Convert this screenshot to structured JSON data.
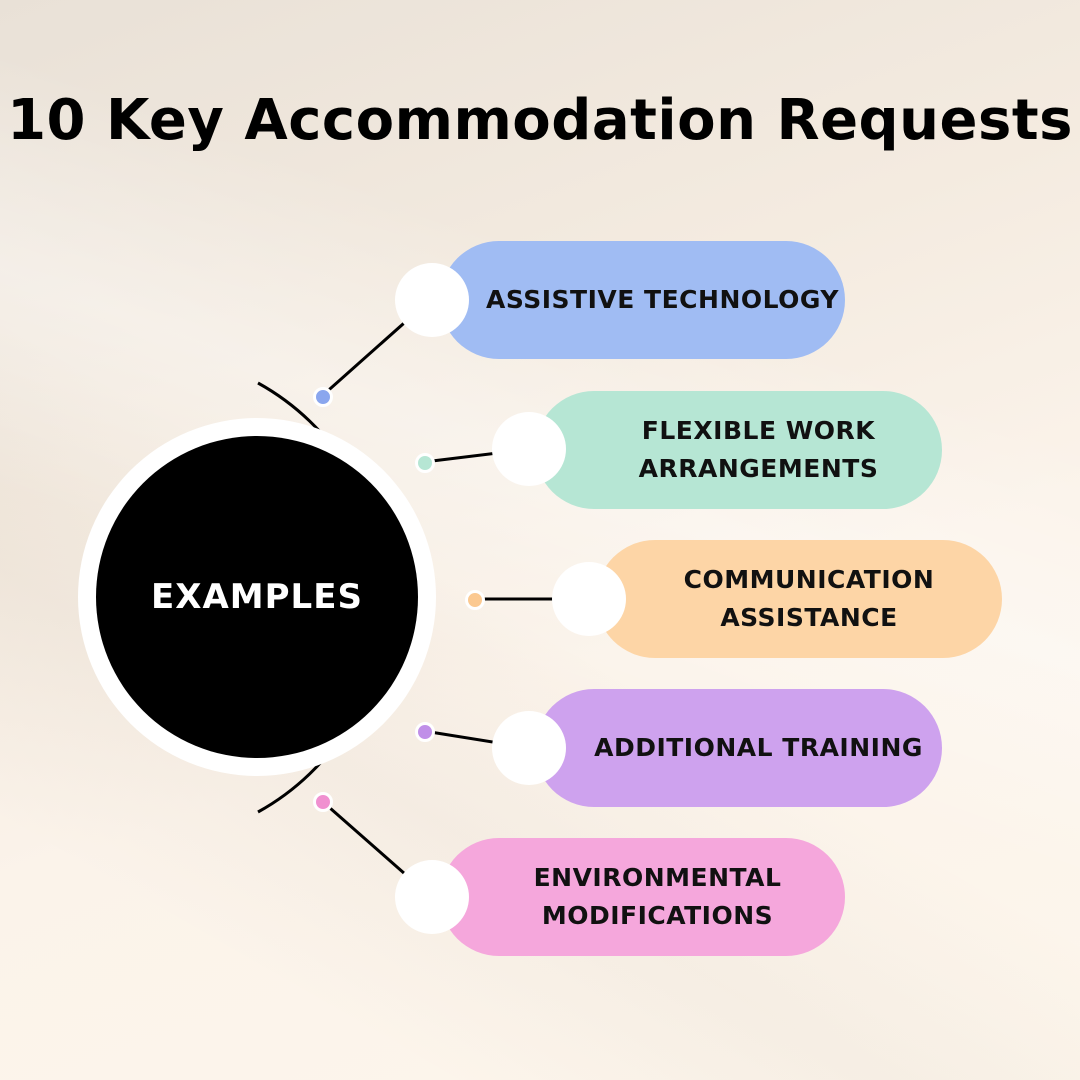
{
  "title": "10 Key Accommodation Requests",
  "hub": {
    "label": "EXAMPLES"
  },
  "items": [
    {
      "label": "ASSISTIVE TECHNOLOGY",
      "color": "#a0bcf3",
      "dot_color": "#8aa6ee"
    },
    {
      "label": "FLEXIBLE WORK ARRANGEMENTS",
      "line1": "FLEXIBLE WORK",
      "line2": "ARRANGEMENTS",
      "color": "#b6e6d4",
      "dot_color": "#b6e6d4"
    },
    {
      "label": "COMMUNICATION ASSISTANCE",
      "line1": "COMMUNICATION",
      "line2": "ASSISTANCE",
      "color": "#fdd5a6",
      "dot_color": "#fbc991"
    },
    {
      "label": "ADDITIONAL TRAINING",
      "color": "#cea2ee",
      "dot_color": "#c08fe8"
    },
    {
      "label": "ENVIRONMENTAL MODIFICATIONS",
      "line1": "ENVIRONMENTAL",
      "line2": "MODIFICATIONS",
      "color": "#f5a7dc",
      "dot_color": "#f090d0"
    }
  ]
}
